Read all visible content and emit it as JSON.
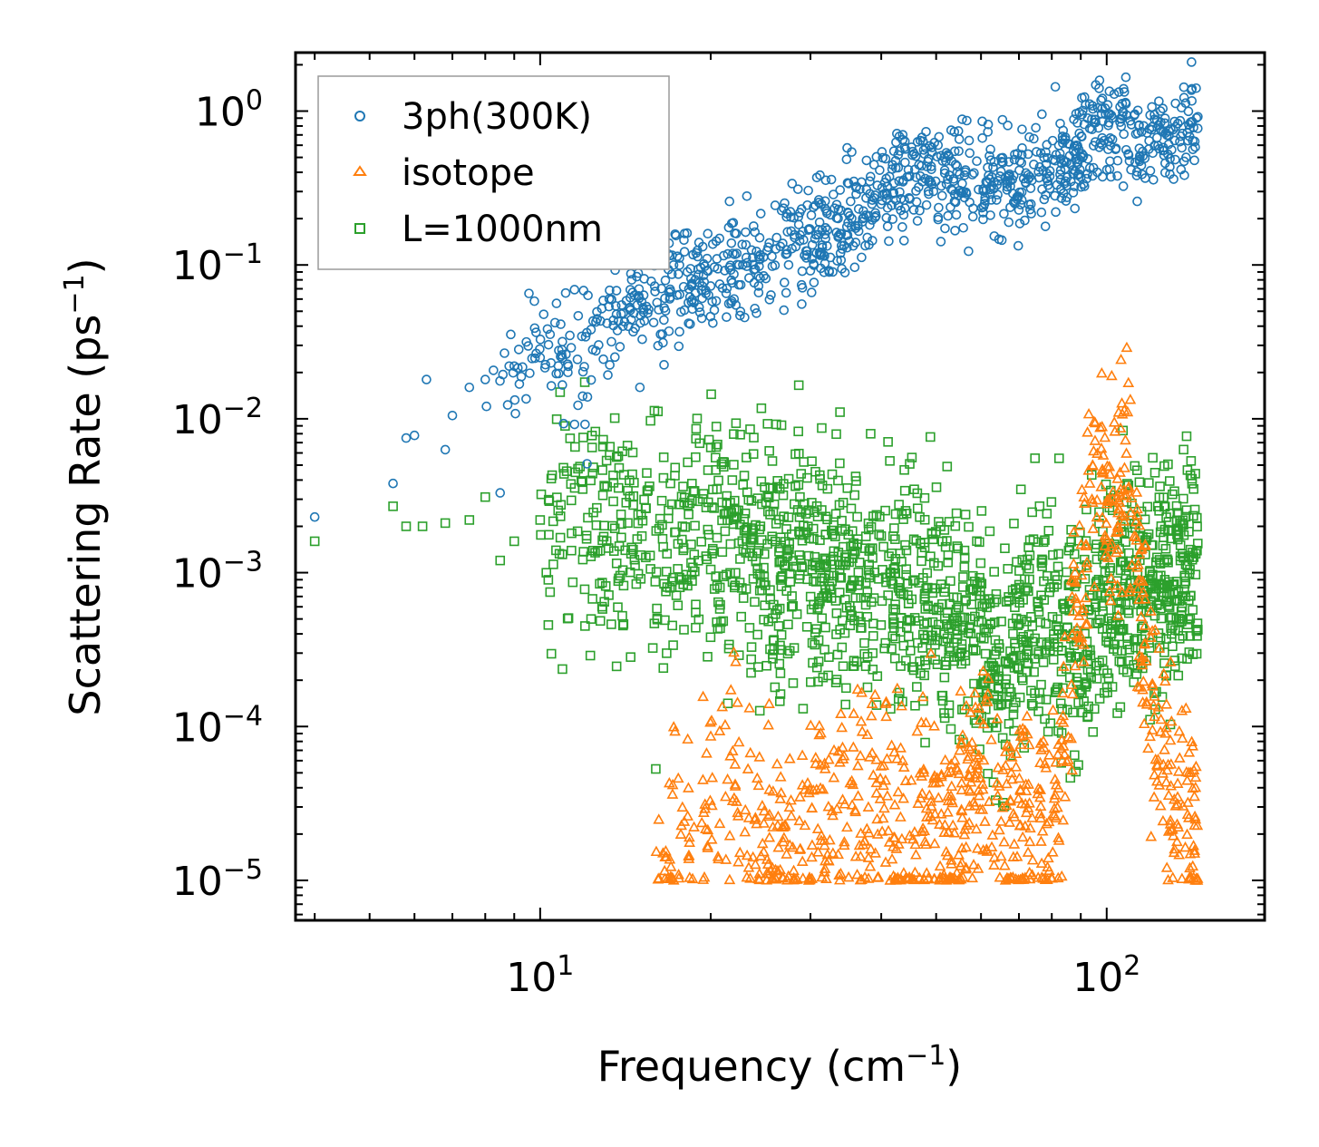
{
  "chart_data": {
    "type": "scatter",
    "xscale": "log",
    "yscale": "log",
    "xlim": [
      3.7,
      190
    ],
    "ylim": [
      5.5e-06,
      2.4
    ],
    "xlabel": "Frequency (cm",
    "xlabel_sup": "−1",
    "xlabel_end": ")",
    "ylabel": "Scattering Rate (ps",
    "ylabel_sup": "−1",
    "ylabel_end": ")",
    "x_ticks": [
      {
        "base": "10",
        "exp": "1",
        "value": 10
      },
      {
        "base": "10",
        "exp": "2",
        "value": 100
      }
    ],
    "y_ticks": [
      {
        "base": "10",
        "exp": "0",
        "value": 1
      },
      {
        "base": "10",
        "exp": "−1",
        "value": 0.1
      },
      {
        "base": "10",
        "exp": "−2",
        "value": 0.01
      },
      {
        "base": "10",
        "exp": "−3",
        "value": 0.001
      },
      {
        "base": "10",
        "exp": "−4",
        "value": 0.0001
      },
      {
        "base": "10",
        "exp": "−5",
        "value": 1e-05
      }
    ],
    "legend_position": "top-left",
    "series": [
      {
        "name": "3ph(300K)",
        "marker": "circle",
        "color": "#1f77b4",
        "x_range": [
          4.0,
          145
        ],
        "points": [
          [
            4.0,
            0.0023
          ],
          [
            5.5,
            0.0038
          ],
          [
            5.8,
            0.0075
          ],
          [
            6.0,
            0.0078
          ],
          [
            6.3,
            0.018
          ],
          [
            6.8,
            0.0063
          ],
          [
            7.0,
            0.0105
          ],
          [
            7.5,
            0.016
          ],
          [
            8.0,
            0.018
          ],
          [
            8.5,
            0.0033
          ],
          [
            9.0,
            0.022
          ],
          [
            10.0,
            0.025
          ],
          [
            11.0,
            0.0093
          ],
          [
            11.5,
            0.0092
          ],
          [
            12.0,
            0.0092
          ],
          [
            12.1,
            0.0051
          ],
          [
            14.0,
            0.04
          ],
          [
            15.0,
            0.016
          ]
        ],
        "trend": [
          [
            8.0,
            0.018
          ],
          [
            12.0,
            0.035
          ],
          [
            15.0,
            0.06
          ],
          [
            20.0,
            0.09
          ],
          [
            25.0,
            0.11
          ],
          [
            30.0,
            0.15
          ],
          [
            35.0,
            0.22
          ],
          [
            40.0,
            0.3
          ],
          [
            45.0,
            0.4
          ],
          [
            50.0,
            0.4
          ],
          [
            60.0,
            0.35
          ],
          [
            70.0,
            0.35
          ],
          [
            80.0,
            0.4
          ],
          [
            90.0,
            0.55
          ],
          [
            95.0,
            0.75
          ],
          [
            100.0,
            0.8
          ],
          [
            110.0,
            0.7
          ],
          [
            120.0,
            0.6
          ],
          [
            130.0,
            0.65
          ],
          [
            145.0,
            0.9
          ]
        ]
      },
      {
        "name": "isotope",
        "marker": "triangle",
        "color": "#ff7f0e",
        "x_range": [
          16,
          145
        ],
        "trend": [
          [
            16.0,
            1.6e-05
          ],
          [
            20.0,
            3e-05
          ],
          [
            22.0,
            6e-05
          ],
          [
            25.0,
            2e-05
          ],
          [
            30.0,
            2e-05
          ],
          [
            35.0,
            3e-05
          ],
          [
            40.0,
            3e-05
          ],
          [
            45.0,
            2e-05
          ],
          [
            55.0,
            3e-05
          ],
          [
            62.0,
            4e-05
          ],
          [
            70.0,
            2e-05
          ],
          [
            80.0,
            2e-05
          ],
          [
            88.0,
            0.0005
          ],
          [
            92.0,
            0.002
          ],
          [
            96.0,
            0.008
          ],
          [
            100.0,
            0.002
          ],
          [
            108.0,
            0.005
          ],
          [
            115.0,
            0.0005
          ],
          [
            125.0,
            5e-05
          ],
          [
            135.0,
            3e-05
          ],
          [
            145.0,
            1.5e-05
          ]
        ]
      },
      {
        "name": "L=1000nm",
        "marker": "square",
        "color": "#2ca02c",
        "x_range": [
          4.0,
          145
        ],
        "points": [
          [
            4.0,
            0.0016
          ],
          [
            5.5,
            0.0027
          ],
          [
            5.8,
            0.002
          ],
          [
            6.2,
            0.002
          ],
          [
            6.8,
            0.0021
          ],
          [
            7.5,
            0.0022
          ],
          [
            8.0,
            0.0031
          ],
          [
            8.5,
            0.0012
          ],
          [
            9.0,
            0.0016
          ],
          [
            10.0,
            0.0022
          ],
          [
            10.5,
            0.0043
          ],
          [
            12.0,
            0.00045
          ],
          [
            12.3,
            0.0005
          ],
          [
            16.0,
            5.3e-05
          ],
          [
            16.5,
            0.00024
          ]
        ],
        "trend": [
          [
            10.0,
            0.002
          ],
          [
            15.0,
            0.0018
          ],
          [
            20.0,
            0.0015
          ],
          [
            25.0,
            0.0013
          ],
          [
            30.0,
            0.0012
          ],
          [
            35.0,
            0.001
          ],
          [
            40.0,
            0.0008
          ],
          [
            45.0,
            0.0007
          ],
          [
            50.0,
            0.0006
          ],
          [
            55.0,
            0.0005
          ],
          [
            60.0,
            0.0004
          ],
          [
            65.0,
            0.0002
          ],
          [
            70.0,
            0.0004
          ],
          [
            80.0,
            0.0005
          ],
          [
            90.0,
            0.0004
          ],
          [
            100.0,
            0.0008
          ],
          [
            110.0,
            0.001
          ],
          [
            120.0,
            0.001
          ],
          [
            130.0,
            0.001
          ],
          [
            145.0,
            0.001
          ]
        ]
      }
    ]
  }
}
